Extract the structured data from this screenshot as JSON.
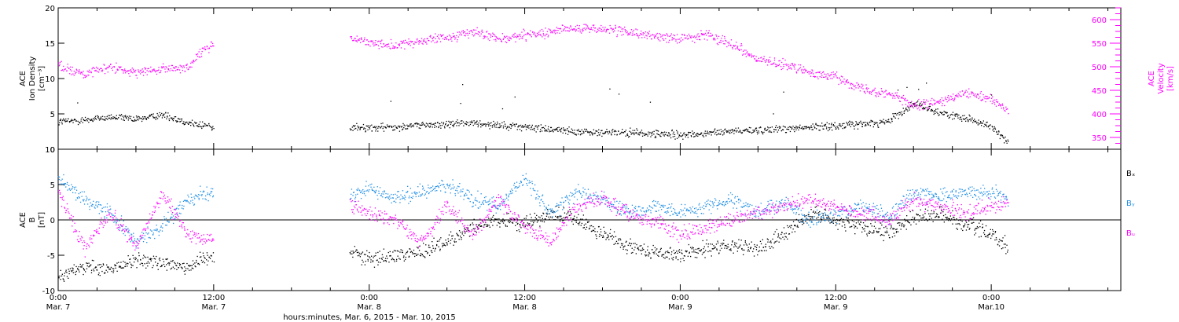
{
  "colors": {
    "black": "#000000",
    "magenta": "#ff00ff",
    "blue": "#1e8ee6"
  },
  "chart_data": [
    {
      "type": "scatter",
      "panel": "top",
      "ylabel_left": [
        "ACE",
        "Ion Density",
        "[cm⁻³]"
      ],
      "ylabel_right": [
        "ACE",
        "Velocity",
        "[km/s]"
      ],
      "ylim_left": [
        0,
        20
      ],
      "left_ticks": [
        "0",
        "5",
        "10",
        "15",
        "20"
      ],
      "ylim_right": [
        325,
        625
      ],
      "right_ticks": [
        "350",
        "400",
        "450",
        "500",
        "550",
        "600"
      ],
      "xlim": [
        0,
        82
      ],
      "gaps": [
        [
          12,
          22.5
        ]
      ],
      "series": [
        {
          "axis": "left",
          "color": "#000000",
          "points": [
            [
              0,
              4.0
            ],
            [
              2,
              4.2
            ],
            [
              4,
              4.6
            ],
            [
              6,
              4.3
            ],
            [
              8,
              5.0
            ],
            [
              10,
              3.8
            ],
            [
              12,
              3.2
            ],
            [
              22.5,
              3.2
            ],
            [
              24,
              3.0
            ],
            [
              26,
              3.3
            ],
            [
              28,
              3.5
            ],
            [
              30,
              3.6
            ],
            [
              32,
              3.8
            ],
            [
              34,
              3.5
            ],
            [
              36,
              3.2
            ],
            [
              38,
              2.9
            ],
            [
              40,
              2.6
            ],
            [
              42,
              2.4
            ],
            [
              44,
              2.4
            ],
            [
              46,
              2.2
            ],
            [
              48,
              2.1
            ],
            [
              50,
              2.3
            ],
            [
              52,
              2.6
            ],
            [
              54,
              2.8
            ],
            [
              56,
              3.0
            ],
            [
              58,
              3.2
            ],
            [
              60,
              3.4
            ],
            [
              62,
              3.6
            ],
            [
              64,
              4.0
            ],
            [
              66,
              6.5
            ],
            [
              68,
              5.2
            ],
            [
              70,
              4.5
            ],
            [
              72,
              3.2
            ],
            [
              73.3,
              1.0
            ]
          ]
        },
        {
          "axis": "right",
          "color": "#ff00ff",
          "points": [
            [
              0,
              505
            ],
            [
              2,
              485
            ],
            [
              4,
              500
            ],
            [
              6,
              490
            ],
            [
              8,
              495
            ],
            [
              10,
              500
            ],
            [
              11,
              530
            ],
            [
              12,
              550
            ],
            [
              22.5,
              560
            ],
            [
              24,
              555
            ],
            [
              26,
              545
            ],
            [
              28,
              555
            ],
            [
              30,
              565
            ],
            [
              32,
              575
            ],
            [
              34,
              560
            ],
            [
              36,
              570
            ],
            [
              38,
              575
            ],
            [
              40,
              585
            ],
            [
              42,
              580
            ],
            [
              44,
              575
            ],
            [
              46,
              565
            ],
            [
              48,
              560
            ],
            [
              50,
              570
            ],
            [
              52,
              550
            ],
            [
              54,
              515
            ],
            [
              56,
              505
            ],
            [
              58,
              490
            ],
            [
              60,
              480
            ],
            [
              62,
              455
            ],
            [
              64,
              445
            ],
            [
              66,
              420
            ],
            [
              68,
              425
            ],
            [
              70,
              445
            ],
            [
              72,
              430
            ],
            [
              73.3,
              405
            ]
          ]
        }
      ]
    },
    {
      "type": "scatter",
      "panel": "bottom",
      "ylabel_left": [
        "ACE",
        "B",
        "[nT]"
      ],
      "ylim_left": [
        -10,
        10
      ],
      "left_ticks": [
        "-10",
        "-5",
        "0",
        "5",
        "10"
      ],
      "xlim": [
        0,
        82
      ],
      "gaps": [
        [
          12,
          22.5
        ]
      ],
      "legend": [
        {
          "text": "Bₓ",
          "color": "#000000"
        },
        {
          "text": "Bᵧ",
          "color": "#1e8ee6"
        },
        {
          "text": "Bᵤ",
          "color": "#ff00ff"
        }
      ],
      "series": [
        {
          "name": "Bx",
          "color": "#000000",
          "points": [
            [
              0,
              -8
            ],
            [
              2,
              -6.5
            ],
            [
              4,
              -7
            ],
            [
              6,
              -5.5
            ],
            [
              8,
              -6
            ],
            [
              10,
              -6.5
            ],
            [
              12,
              -5
            ],
            [
              22.5,
              -4
            ],
            [
              24,
              -5.5
            ],
            [
              26,
              -5
            ],
            [
              28,
              -4.5
            ],
            [
              30,
              -3
            ],
            [
              32,
              -1
            ],
            [
              34,
              0
            ],
            [
              36,
              -0.5
            ],
            [
              38,
              1
            ],
            [
              40,
              0
            ],
            [
              42,
              -2
            ],
            [
              44,
              -3.5
            ],
            [
              46,
              -4.5
            ],
            [
              48,
              -5
            ],
            [
              50,
              -4
            ],
            [
              52,
              -3.5
            ],
            [
              54,
              -4
            ],
            [
              56,
              -2
            ],
            [
              58,
              1
            ],
            [
              60,
              0
            ],
            [
              62,
              -1
            ],
            [
              64,
              -2
            ],
            [
              66,
              0.5
            ],
            [
              68,
              1
            ],
            [
              70,
              -0.5
            ],
            [
              72,
              -2
            ],
            [
              73.3,
              -4
            ]
          ]
        },
        {
          "name": "By",
          "color": "#1e8ee6",
          "points": [
            [
              0,
              6
            ],
            [
              2,
              3
            ],
            [
              4,
              1
            ],
            [
              6,
              -3
            ],
            [
              8,
              -1
            ],
            [
              10,
              3
            ],
            [
              12,
              4
            ],
            [
              22.5,
              3.5
            ],
            [
              24,
              4.5
            ],
            [
              26,
              3
            ],
            [
              28,
              4
            ],
            [
              30,
              5
            ],
            [
              32,
              3
            ],
            [
              34,
              2
            ],
            [
              36,
              6
            ],
            [
              38,
              1
            ],
            [
              40,
              4
            ],
            [
              42,
              3
            ],
            [
              44,
              1
            ],
            [
              46,
              2
            ],
            [
              48,
              1
            ],
            [
              50,
              2
            ],
            [
              52,
              3
            ],
            [
              54,
              1
            ],
            [
              56,
              2.5
            ],
            [
              58,
              0
            ],
            [
              60,
              1
            ],
            [
              62,
              2
            ],
            [
              64,
              0.5
            ],
            [
              66,
              4
            ],
            [
              68,
              3.5
            ],
            [
              70,
              4
            ],
            [
              72,
              4
            ],
            [
              73.3,
              3
            ]
          ]
        },
        {
          "name": "Bz",
          "color": "#ff00ff",
          "points": [
            [
              0,
              4
            ],
            [
              2,
              -4
            ],
            [
              4,
              1
            ],
            [
              6,
              -4
            ],
            [
              8,
              4
            ],
            [
              10,
              -2
            ],
            [
              12,
              -3
            ],
            [
              22.5,
              2
            ],
            [
              24,
              1
            ],
            [
              26,
              0
            ],
            [
              28,
              -3
            ],
            [
              30,
              2
            ],
            [
              32,
              -2
            ],
            [
              34,
              3
            ],
            [
              36,
              -1
            ],
            [
              38,
              -3
            ],
            [
              40,
              2
            ],
            [
              42,
              3
            ],
            [
              44,
              1
            ],
            [
              46,
              0
            ],
            [
              48,
              -2
            ],
            [
              50,
              -1
            ],
            [
              52,
              0
            ],
            [
              54,
              1
            ],
            [
              56,
              2
            ],
            [
              58,
              3
            ],
            [
              60,
              2
            ],
            [
              62,
              1
            ],
            [
              64,
              0
            ],
            [
              66,
              3
            ],
            [
              68,
              2
            ],
            [
              70,
              1
            ],
            [
              72,
              2
            ],
            [
              73.3,
              2.5
            ]
          ]
        }
      ]
    }
  ],
  "xaxis": {
    "ticks": [
      {
        "hour": 0,
        "line1": "0:00",
        "line2": "Mar. 7"
      },
      {
        "hour": 12,
        "line1": "12:00",
        "line2": "Mar. 7"
      },
      {
        "hour": 24,
        "line1": "0:00",
        "line2": "Mar. 8"
      },
      {
        "hour": 36,
        "line1": "12:00",
        "line2": "Mar. 8"
      },
      {
        "hour": 48,
        "line1": "0:00",
        "line2": "Mar. 9"
      },
      {
        "hour": 60,
        "line1": "12:00",
        "line2": "Mar. 9"
      },
      {
        "hour": 72,
        "line1": "0:00",
        "line2": "Mar.10"
      }
    ],
    "title": "hours:minutes, Mar.  6, 2015 - Mar. 10, 2015"
  }
}
